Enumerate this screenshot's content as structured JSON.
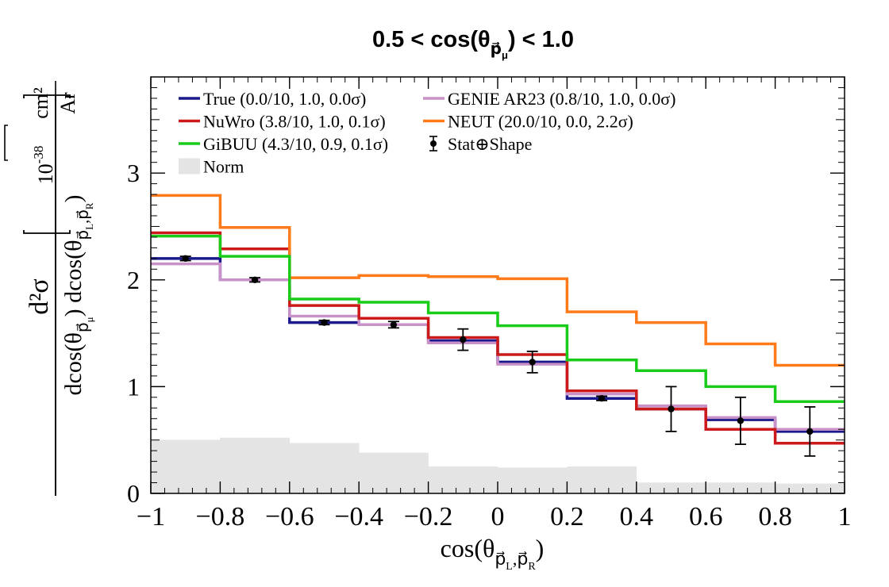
{
  "chart_data": {
    "type": "step",
    "title": "0.5 < cos(θ",
    "title_sub": "p⃗",
    "title_subsub": "μ",
    "title_end": ") < 1.0",
    "xlabel": "cos(θ",
    "xlabel_sub": "p⃗",
    "xlabel_subsub1": "L",
    "xlabel_sub2": ",p⃗",
    "xlabel_subsub2": "R",
    "xlabel_end": ")",
    "ylabel": {
      "numerator": "d²σ",
      "den_part1": "dcos(θ",
      "den_sub1": "p⃗",
      "den_subsub1": "μ",
      "den_part2": ") dcos(θ",
      "den_sub2": "p⃗",
      "den_subsub2": "L",
      "den_sub3": ",p⃗",
      "den_subsub3": "R",
      "den_part3": ")",
      "unit_base": "10",
      "unit_exp": "-38",
      "unit_num": "cm²",
      "unit_den": "Ar"
    },
    "xlim": [
      -1,
      1
    ],
    "ylim": [
      0,
      3.9
    ],
    "x_ticks": [
      -1,
      -0.8,
      -0.6,
      -0.4,
      -0.2,
      0,
      0.2,
      0.4,
      0.6,
      0.8,
      1
    ],
    "x_tick_labels": [
      "−1",
      "−0.8",
      "−0.6",
      "−0.4",
      "−0.2",
      "0",
      "0.2",
      "0.4",
      "0.6",
      "0.8",
      "1"
    ],
    "y_ticks": [
      0,
      1,
      2,
      3
    ],
    "y_tick_labels": [
      "0",
      "1",
      "2",
      "3"
    ],
    "bin_edges": [
      -1,
      -0.8,
      -0.6,
      -0.4,
      -0.2,
      0,
      0.2,
      0.4,
      0.6,
      0.8,
      1
    ],
    "norm": {
      "name": "Norm",
      "color": "#e4e4e4",
      "values": [
        0.5,
        0.52,
        0.47,
        0.38,
        0.25,
        0.24,
        0.25,
        0.1,
        0.1,
        0.09
      ]
    },
    "series": [
      {
        "name": "True (0.0/10, 1.0, 0.0σ)",
        "color": "#1a1a8c",
        "values": [
          2.2,
          2.0,
          1.6,
          1.58,
          1.43,
          1.23,
          0.89,
          0.79,
          0.69,
          0.58
        ]
      },
      {
        "name": "GENIE AR23 (0.8/10, 1.0, 0.0σ)",
        "color": "#c891c8",
        "values": [
          2.15,
          2.0,
          1.66,
          1.58,
          1.41,
          1.21,
          0.93,
          0.82,
          0.71,
          0.6
        ]
      },
      {
        "name": "NuWro (3.8/10, 1.0, 0.1σ)",
        "color": "#cc1a1a",
        "values": [
          2.44,
          2.29,
          1.76,
          1.64,
          1.46,
          1.3,
          0.96,
          0.79,
          0.6,
          0.47
        ]
      },
      {
        "name": "NEUT (20.0/10, 0.0, 2.2σ)",
        "color": "#ff7a1a",
        "values": [
          2.79,
          2.49,
          2.02,
          2.04,
          2.03,
          2.01,
          1.7,
          1.6,
          1.4,
          1.2
        ]
      },
      {
        "name": "GiBUU (4.3/10, 0.9, 0.1σ)",
        "color": "#1acc1a",
        "values": [
          2.41,
          2.22,
          1.82,
          1.79,
          1.69,
          1.57,
          1.25,
          1.15,
          1.0,
          0.86
        ]
      }
    ],
    "data": {
      "name": "Stat⊕Shape",
      "color": "#000000",
      "x": [
        -0.9,
        -0.7,
        -0.5,
        -0.3,
        -0.1,
        0.1,
        0.3,
        0.5,
        0.7,
        0.9
      ],
      "y": [
        2.2,
        2.0,
        1.6,
        1.58,
        1.44,
        1.23,
        0.89,
        0.79,
        0.68,
        0.58
      ],
      "err": [
        0.02,
        0.02,
        0.02,
        0.03,
        0.1,
        0.1,
        0.02,
        0.21,
        0.22,
        0.23
      ]
    },
    "legend": {
      "placement": "top-left",
      "entries": [
        {
          "label": "True (0.0/10, 1.0, 0.0σ)",
          "kind": "line",
          "color": "#1a1a8c"
        },
        {
          "label": "GENIE AR23 (0.8/10, 1.0, 0.0σ)",
          "kind": "line",
          "color": "#c891c8"
        },
        {
          "label": "NuWro (3.8/10, 1.0, 0.1σ)",
          "kind": "line",
          "color": "#cc1a1a"
        },
        {
          "label": "NEUT (20.0/10, 0.0, 2.2σ)",
          "kind": "line",
          "color": "#ff7a1a"
        },
        {
          "label": "GiBUU (4.3/10, 0.9, 0.1σ)",
          "kind": "line",
          "color": "#1acc1a"
        },
        {
          "label": "Stat⊕Shape",
          "kind": "marker",
          "color": "#000000"
        },
        {
          "label": "Norm",
          "kind": "box",
          "color": "#e4e4e4"
        }
      ]
    },
    "grid": false
  }
}
